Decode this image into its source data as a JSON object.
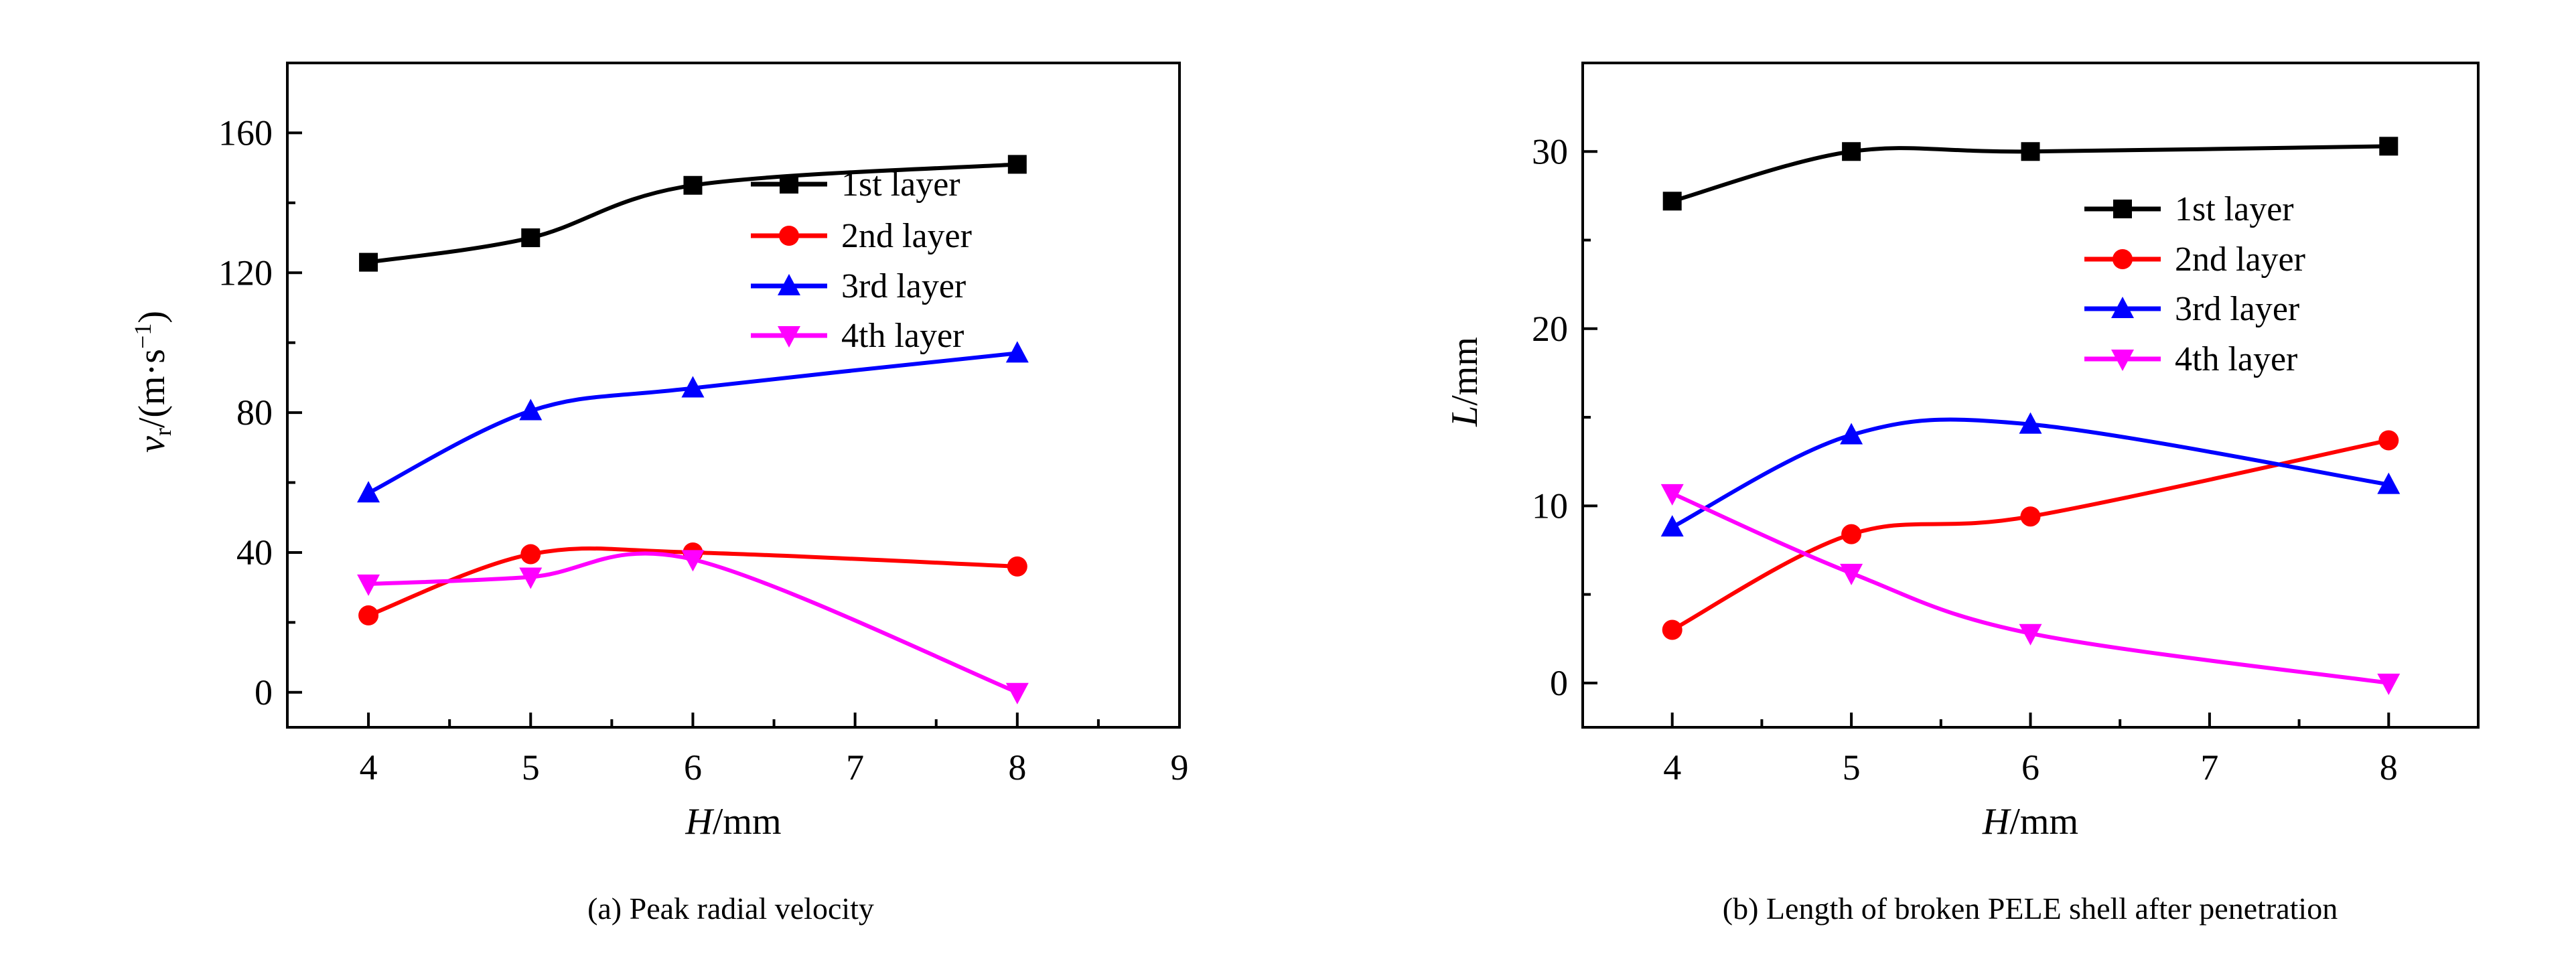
{
  "chart_data": [
    {
      "type": "line",
      "caption": "(a) Peak radial velocity",
      "xlabel": {
        "italic": "H",
        "rest": "/mm"
      },
      "ylabel": {
        "italic": "v",
        "sub": "r",
        "rest": "/(m·s",
        "sup": "−1",
        "close": ")"
      },
      "x": [
        4,
        5,
        6,
        8
      ],
      "xlim": [
        3.5,
        9
      ],
      "ylim": [
        -10,
        180
      ],
      "xticks": [
        4,
        5,
        6,
        7,
        8,
        9
      ],
      "yticks": [
        0,
        40,
        80,
        120,
        160
      ],
      "legend_position": "top-right",
      "series": [
        {
          "name": "1st layer",
          "color": "#000000",
          "marker": "square",
          "values": [
            123,
            130,
            145,
            151
          ]
        },
        {
          "name": "2nd layer",
          "color": "#ff0000",
          "marker": "circle",
          "values": [
            22,
            39.5,
            40,
            36
          ]
        },
        {
          "name": "3rd layer",
          "color": "#0000ff",
          "marker": "triangle-up",
          "values": [
            57,
            80.5,
            87,
            97
          ]
        },
        {
          "name": "4th layer",
          "color": "#ff00ff",
          "marker": "triangle-down",
          "values": [
            31,
            33,
            38,
            0
          ]
        }
      ]
    },
    {
      "type": "line",
      "caption": "(b) Length of broken PELE shell after penetration",
      "xlabel": {
        "italic": "H",
        "rest": "/mm"
      },
      "ylabel": {
        "italic": "L",
        "rest": "/mm"
      },
      "x": [
        4,
        5,
        6,
        8
      ],
      "xlim": [
        3.5,
        8.5
      ],
      "ylim": [
        -2.5,
        35
      ],
      "xticks": [
        4,
        5,
        6,
        7,
        8
      ],
      "yticks": [
        0,
        10,
        20,
        30
      ],
      "legend_position": "top-right",
      "series": [
        {
          "name": "1st layer",
          "color": "#000000",
          "marker": "square",
          "values": [
            27.2,
            30,
            30,
            30.3
          ]
        },
        {
          "name": "2nd layer",
          "color": "#ff0000",
          "marker": "circle",
          "values": [
            3,
            8.4,
            9.4,
            13.7
          ]
        },
        {
          "name": "3rd layer",
          "color": "#0000ff",
          "marker": "triangle-up",
          "values": [
            8.8,
            14,
            14.6,
            11.2
          ]
        },
        {
          "name": "4th layer",
          "color": "#ff00ff",
          "marker": "triangle-down",
          "values": [
            10.7,
            6.2,
            2.8,
            0
          ]
        }
      ]
    }
  ]
}
